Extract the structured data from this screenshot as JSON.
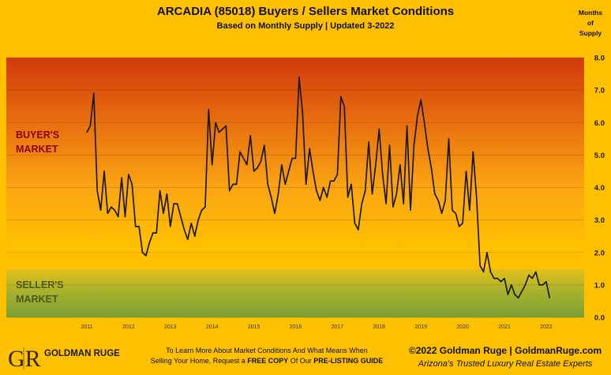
{
  "header": {
    "title": "ARCADIA (85018) Buyers / Sellers Market Conditions",
    "subtitle": "Based on Monthly Supply | Updated 3-2022",
    "y_unit_line1": "Months",
    "y_unit_line2": "of",
    "y_unit_line3": "Supply"
  },
  "zones": {
    "buyers_line1": "BUYER'S",
    "buyers_line2": "MARKET",
    "sellers_line1": "SELLER'S",
    "sellers_line2": "MARKET"
  },
  "footer": {
    "logo_text": "GOLDMAN RUGE",
    "logo_mark": "GR",
    "cta_line1": "To Learn More About Market Conditions And What Means When",
    "cta_line2_a": "Selling Your Home, Request a ",
    "cta_line2_b": "FREE COPY",
    "cta_line2_c": " Of Our ",
    "cta_line2_d": "PRE-LISTING GUIDE",
    "copyright": "©2022 Goldman Ruge  |  GoldmanRuge.com",
    "tagline": "Arizona's Trusted Luxury Real Estate Experts"
  },
  "colors": {
    "background": "#FFC000",
    "buyers_zone_top": "#D53A0A",
    "sellers_zone": "#8FA832",
    "line": "#1a1a1a"
  },
  "chart_data": {
    "type": "line",
    "title": "ARCADIA (85018) Buyers / Sellers Market Conditions",
    "xlabel": "",
    "ylabel": "Months of Supply",
    "ylim": [
      0,
      8
    ],
    "y_ticks": [
      "0.0",
      "1.0",
      "2.0",
      "3.0",
      "4.0",
      "5.0",
      "6.0",
      "7.0",
      "8.0"
    ],
    "x_ticks": [
      "2011",
      "2012",
      "2013",
      "2014",
      "2015",
      "2016",
      "2017",
      "2018",
      "2019",
      "2020",
      "2021",
      "2022"
    ],
    "x_start_year": 2011,
    "grid": true,
    "series": [
      {
        "values": [
          5.7,
          5.9,
          6.9,
          3.9,
          3.3,
          4.5,
          3.2,
          3.4,
          3.3,
          3.1,
          4.3,
          3.1,
          4.4,
          4.1,
          2.8,
          2.8,
          2.0,
          1.9,
          2.3,
          2.6,
          2.6,
          3.9,
          3.2,
          3.8,
          2.8,
          3.5,
          3.5,
          3.1,
          2.7,
          2.4,
          2.9,
          2.5,
          3.0,
          3.3,
          3.4,
          6.4,
          4.7,
          6.0,
          5.7,
          5.8,
          5.9,
          3.9,
          4.1,
          4.1,
          5.1,
          4.9,
          4.7,
          5.6,
          4.5,
          4.6,
          4.8,
          5.3,
          4.1,
          3.7,
          3.2,
          3.8,
          4.7,
          4.1,
          4.5,
          4.9,
          4.9,
          7.4,
          6.3,
          4.1,
          5.2,
          4.5,
          3.9,
          3.6,
          4.0,
          3.7,
          4.2,
          4.2,
          4.4,
          6.8,
          6.5,
          3.7,
          4.1,
          2.9,
          2.7,
          3.5,
          3.9,
          5.4,
          3.8,
          4.7,
          5.8,
          4.4,
          3.5,
          5.3,
          3.4,
          3.8,
          4.7,
          3.5,
          5.9,
          3.3,
          5.3,
          6.2,
          6.7,
          6.0,
          5.2,
          4.6,
          3.8,
          3.6,
          3.2,
          3.6,
          5.5,
          3.3,
          3.2,
          2.8,
          2.9,
          4.5,
          3.3,
          5.1,
          3.7,
          1.6,
          1.4,
          2.0,
          1.4,
          1.2,
          1.2,
          1.1,
          1.2,
          0.7,
          1.0,
          0.7,
          0.6,
          0.8,
          1.0,
          1.3,
          1.2,
          1.4,
          1.0,
          1.0,
          1.1,
          0.6
        ]
      }
    ]
  }
}
